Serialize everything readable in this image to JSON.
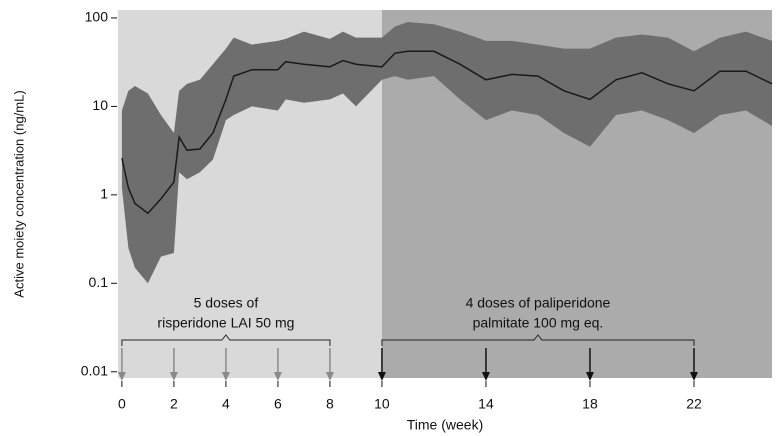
{
  "chart_data": {
    "type": "band-line",
    "y_label": "Active moiety concentration (ng/mL)",
    "x_label": "Time (week)",
    "log_y": true,
    "xlim": [
      -0.15,
      25.0
    ],
    "ylim": [
      0.0085,
      123
    ],
    "xticks": [
      0,
      2,
      4,
      6,
      8,
      10,
      14,
      18,
      22
    ],
    "yticks": [
      100,
      10,
      1,
      0.1,
      0.01
    ],
    "phase_boundary": 10,
    "phase_colors": [
      "#d9d9d9",
      "#ababab"
    ],
    "x": [
      0,
      0.25,
      0.5,
      1,
      1.5,
      2,
      2.2,
      2.5,
      3,
      3.5,
      4,
      4.3,
      5,
      6,
      6.3,
      7,
      8,
      8.5,
      9,
      10,
      10.5,
      11,
      12,
      13,
      14,
      15,
      16,
      17,
      18,
      19,
      20,
      21,
      22,
      23,
      24,
      25
    ],
    "median": {
      "color": "#1a1a1a",
      "values": [
        2.6,
        1.2,
        0.8,
        0.62,
        0.9,
        1.4,
        4.5,
        3.2,
        3.3,
        5,
        12,
        22,
        26,
        26,
        32,
        30,
        28,
        33,
        30,
        28,
        40,
        42,
        42,
        30,
        20,
        23,
        22,
        15,
        12,
        20,
        24,
        18,
        15,
        25,
        25,
        18
      ]
    },
    "band": {
      "color": "#6e6e6e",
      "upper": [
        9,
        15,
        17,
        14,
        8,
        5,
        15,
        18,
        20,
        30,
        45,
        60,
        50,
        55,
        58,
        70,
        58,
        70,
        60,
        60,
        80,
        90,
        85,
        70,
        55,
        55,
        50,
        45,
        45,
        60,
        65,
        60,
        42,
        60,
        70,
        55
      ],
      "lower": [
        1.2,
        0.25,
        0.15,
        0.1,
        0.2,
        0.22,
        1.8,
        1.5,
        1.8,
        2.5,
        7,
        8,
        10,
        9,
        12,
        11,
        12,
        14,
        10,
        20,
        22,
        20,
        22,
        12,
        7,
        9,
        8,
        5,
        3.5,
        8,
        9,
        7,
        5,
        8,
        9,
        6
      ]
    },
    "doses": [
      {
        "label": [
          "5 doses of",
          "risperidone LAI 50 mg"
        ],
        "weeks": [
          0,
          2,
          4,
          6,
          8
        ],
        "color": "#8a8a8a"
      },
      {
        "label": [
          "4 doses of paliperidone",
          "palmitate 100 mg eq."
        ],
        "weeks": [
          10,
          14,
          18,
          22
        ],
        "color": "#111111"
      }
    ]
  }
}
